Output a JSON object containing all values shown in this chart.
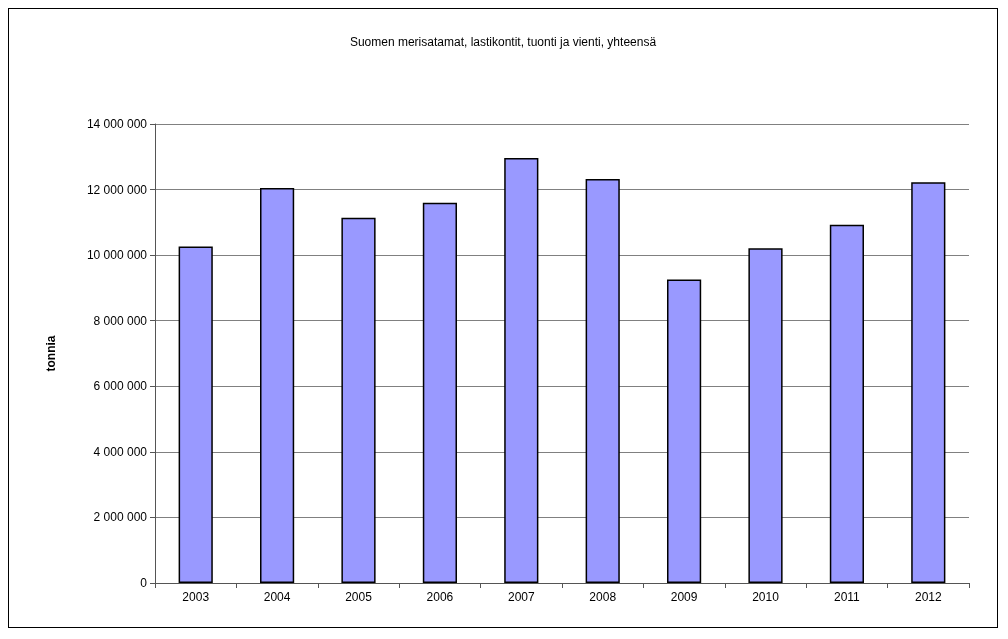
{
  "chart_data": {
    "type": "bar",
    "title": "Suomen merisatamat, lastikontit, tuonti ja vienti, yhteensä",
    "ylabel": "tonnia",
    "categories": [
      "2003",
      "2004",
      "2005",
      "2006",
      "2007",
      "2008",
      "2009",
      "2010",
      "2011",
      "2012"
    ],
    "values": [
      10260000,
      12050000,
      11140000,
      11600000,
      12960000,
      12320000,
      9260000,
      10210000,
      10930000,
      12220000
    ],
    "color": "#9999ff",
    "ylim": [
      0,
      14000000
    ],
    "yticks": [
      {
        "value": 0,
        "label": "0"
      },
      {
        "value": 2000000,
        "label": "2 000 000"
      },
      {
        "value": 4000000,
        "label": "4 000 000"
      },
      {
        "value": 6000000,
        "label": "6 000 000"
      },
      {
        "value": 8000000,
        "label": "8 000 000"
      },
      {
        "value": 10000000,
        "label": "10 000 000"
      },
      {
        "value": 12000000,
        "label": "12 000 000"
      },
      {
        "value": 14000000,
        "label": "14 000 000"
      }
    ],
    "grid": "y"
  }
}
